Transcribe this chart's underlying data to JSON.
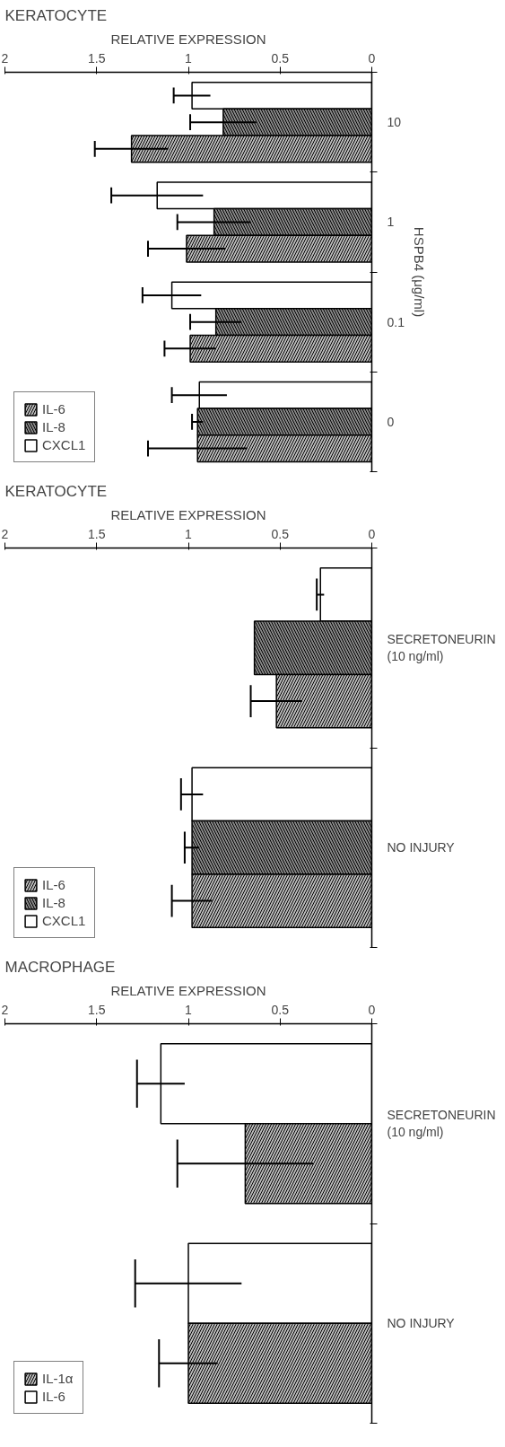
{
  "chart_data": [
    {
      "type": "bar",
      "orientation": "horizontal",
      "title": "KERATOCYTE",
      "xlabel": "RELATIVE EXPRESSION",
      "ylabel": "HSPB4 (μg/ml)",
      "categories": [
        "10",
        "1",
        "0.1",
        "0"
      ],
      "series": [
        {
          "name": "CXCL1",
          "color": "#ffffff",
          "values": [
            0.98,
            1.17,
            1.09,
            0.94
          ],
          "errors": [
            0.1,
            0.25,
            0.16,
            0.15
          ]
        },
        {
          "name": "IL-8",
          "color": "#888888",
          "values": [
            0.81,
            0.86,
            0.85,
            0.95
          ],
          "errors": [
            0.18,
            0.2,
            0.14,
            0.03
          ]
        },
        {
          "name": "IL-6",
          "color": "#bbbbbb",
          "values": [
            1.31,
            1.01,
            0.99,
            0.95
          ],
          "errors": [
            0.2,
            0.21,
            0.14,
            0.27
          ]
        }
      ],
      "xlim": [
        2,
        0
      ],
      "xticks": [
        0,
        0.5,
        1,
        1.5,
        2
      ],
      "grid": false,
      "legend": "bottom left"
    },
    {
      "type": "bar",
      "orientation": "horizontal",
      "title": "KERATOCYTE",
      "xlabel": "RELATIVE EXPRESSION",
      "categories": [
        "SECRETONEURIN\n(10 ng/ml)",
        "NO INJURY"
      ],
      "series": [
        {
          "name": "CXCL1",
          "color": "#ffffff",
          "values": [
            0.28,
            0.98
          ],
          "errors": [
            0.02,
            0.06
          ]
        },
        {
          "name": "IL-8",
          "color": "#888888",
          "values": [
            0.64,
            0.98
          ],
          "errors": [
            null,
            0.04
          ]
        },
        {
          "name": "IL-6",
          "color": "#bbbbbb",
          "values": [
            0.52,
            0.98
          ],
          "errors": [
            0.14,
            0.11
          ]
        }
      ],
      "xlim": [
        2,
        0
      ],
      "xticks": [
        0,
        0.5,
        1,
        1.5,
        2
      ],
      "grid": false,
      "legend": "bottom left"
    },
    {
      "type": "bar",
      "orientation": "horizontal",
      "title": "MACROPHAGE",
      "xlabel": "RELATIVE EXPRESSION",
      "categories": [
        "SECRETONEURIN\n(10 ng/ml)",
        "NO INJURY"
      ],
      "series": [
        {
          "name": "IL-6",
          "color": "#ffffff",
          "values": [
            1.15,
            1.0
          ],
          "errors": [
            0.13,
            0.29
          ]
        },
        {
          "name": "IL-1α",
          "color": "#bbbbbb",
          "values": [
            0.69,
            1.0
          ],
          "errors": [
            0.37,
            0.16
          ]
        }
      ],
      "xlim": [
        2,
        0
      ],
      "xticks": [
        0,
        0.5,
        1,
        1.5,
        2
      ],
      "grid": false,
      "legend": "bottom left"
    }
  ]
}
